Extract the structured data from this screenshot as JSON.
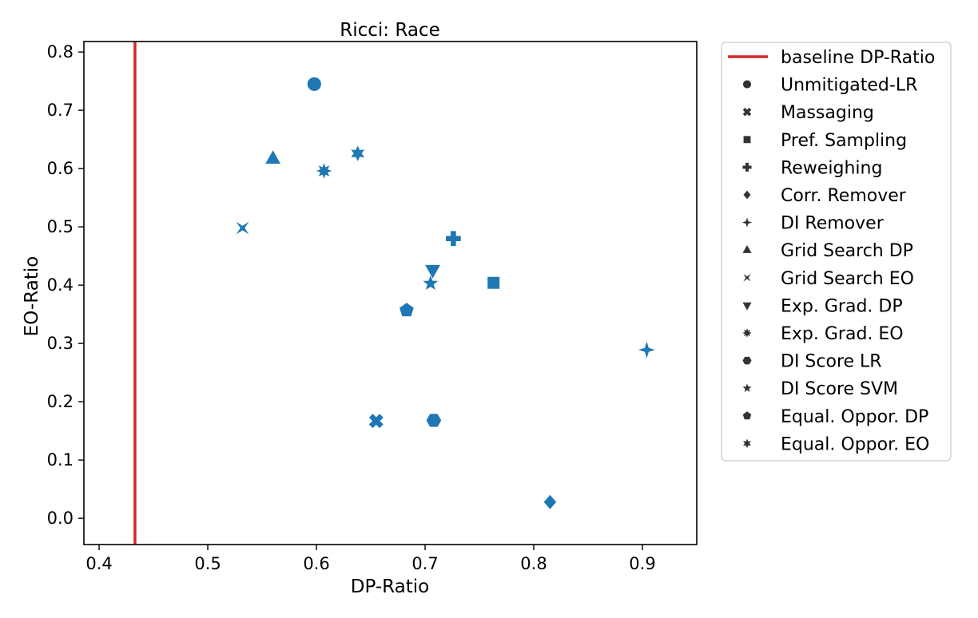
{
  "chart_data": {
    "type": "scatter",
    "title": "Ricci: Race",
    "xlabel": "DP-Ratio",
    "ylabel": "EO-Ratio",
    "xlim": [
      0.386,
      0.95
    ],
    "ylim": [
      -0.045,
      0.818
    ],
    "xticks": [
      "0.4",
      "0.5",
      "0.6",
      "0.7",
      "0.8",
      "0.9"
    ],
    "yticks": [
      "0.0",
      "0.1",
      "0.2",
      "0.3",
      "0.4",
      "0.5",
      "0.6",
      "0.7",
      "0.8"
    ],
    "grid": false,
    "legend_position": "outside-right",
    "marker_color": "#1f77b4",
    "baseline": {
      "name": "baseline DP-Ratio",
      "x": 0.433,
      "color": "#d62728"
    },
    "series": [
      {
        "name": "Unmitigated-LR",
        "marker": "circle",
        "x": 0.598,
        "y": 0.745
      },
      {
        "name": "Massaging",
        "marker": "x",
        "x": 0.655,
        "y": 0.167
      },
      {
        "name": "Pref. Sampling",
        "marker": "square",
        "x": 0.763,
        "y": 0.404
      },
      {
        "name": "Reweighing",
        "marker": "plus",
        "x": 0.726,
        "y": 0.48
      },
      {
        "name": "Corr. Remover",
        "marker": "diamond",
        "x": 0.815,
        "y": 0.028
      },
      {
        "name": "DI Remover",
        "marker": "star4",
        "x": 0.904,
        "y": 0.289
      },
      {
        "name": "Grid Search DP",
        "marker": "triangle-up",
        "x": 0.56,
        "y": 0.617
      },
      {
        "name": "Grid Search EO",
        "marker": "bowtie",
        "x": 0.532,
        "y": 0.498
      },
      {
        "name": "Exp. Grad. DP",
        "marker": "triangle-down",
        "x": 0.707,
        "y": 0.426
      },
      {
        "name": "Exp. Grad. EO",
        "marker": "star8",
        "x": 0.607,
        "y": 0.596
      },
      {
        "name": "DI Score LR",
        "marker": "hexagon",
        "x": 0.708,
        "y": 0.168
      },
      {
        "name": "DI Score SVM",
        "marker": "star5",
        "x": 0.705,
        "y": 0.403
      },
      {
        "name": "Equal. Oppor. DP",
        "marker": "pentagon",
        "x": 0.683,
        "y": 0.357
      },
      {
        "name": "Equal. Oppor. EO",
        "marker": "star6",
        "x": 0.638,
        "y": 0.626
      }
    ]
  }
}
